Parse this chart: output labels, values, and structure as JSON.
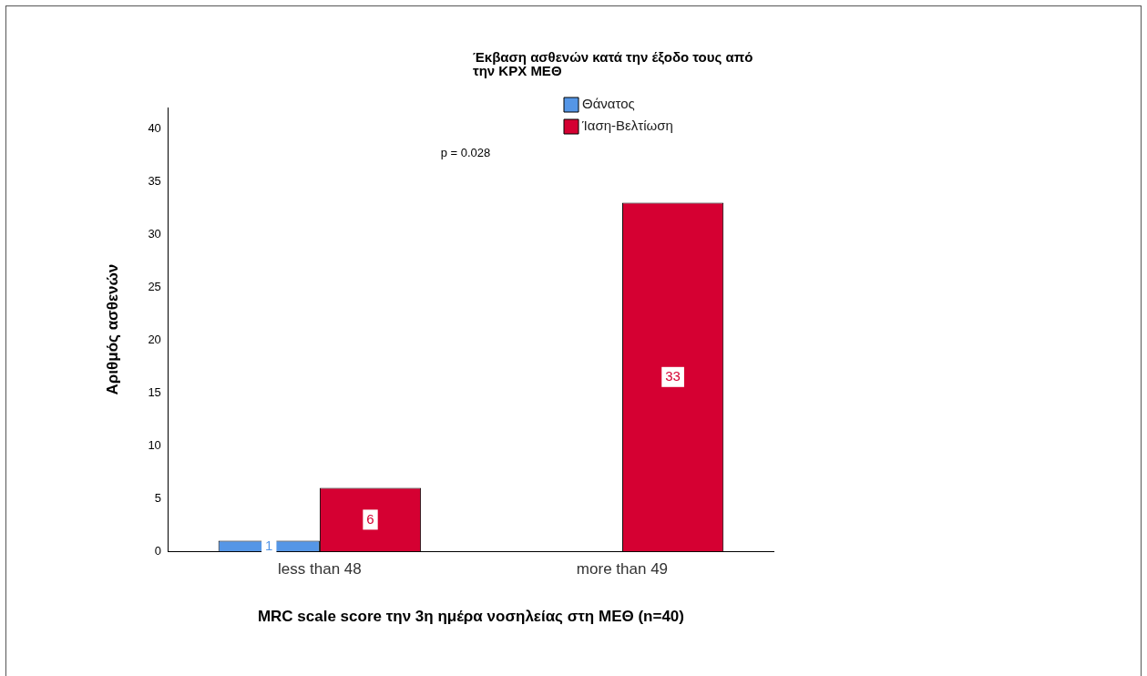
{
  "chart_data": {
    "type": "bar",
    "xlabel": "MRC scale score την 3η ημέρα νοσηλείας στη ΜΕΘ (n=40)",
    "ylabel": "Αριθμός ασθενών",
    "legend_title": "Έκβαση ασθενών κατά την έξοδο τους από την ΚΡΧ ΜΕΘ",
    "categories": [
      "less than 48",
      "more than 49"
    ],
    "series": [
      {
        "name": "Θάνατος",
        "color": "#5596e6",
        "values": [
          1,
          null
        ]
      },
      {
        "name": "Ίαση-Βελτίωση",
        "color": "#d50032",
        "values": [
          6,
          33
        ]
      }
    ],
    "ylim": [
      0,
      42
    ],
    "yticks": [
      0,
      5,
      10,
      15,
      20,
      25,
      30,
      35,
      40
    ],
    "grid": false,
    "legend": "top right",
    "data_labels": true,
    "annotations": [
      {
        "text": "p = 0.028"
      }
    ]
  }
}
